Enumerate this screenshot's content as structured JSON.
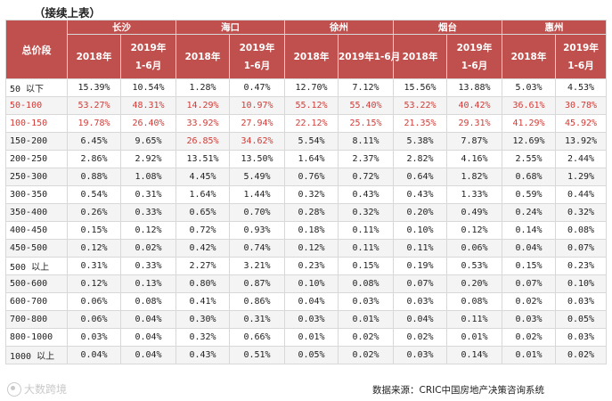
{
  "caption": "（接续上表）",
  "table": {
    "range_header": "总价段",
    "cities": [
      "长沙",
      "海口",
      "徐州",
      "烟台",
      "惠州"
    ],
    "period_a": "2018年",
    "period_b_line1": "2019年",
    "period_b_line2": "1-6月",
    "xuzhou_period_b": "2019年1-6月",
    "rows": [
      {
        "range": "50 以下",
        "v": [
          "15.39%",
          "10.54%",
          "1.28%",
          "0.47%",
          "12.70%",
          "7.12%",
          "15.56%",
          "13.88%",
          "5.03%",
          "4.53%"
        ]
      },
      {
        "range": "50-100",
        "v": [
          "53.27%",
          "48.31%",
          "14.29%",
          "10.97%",
          "55.12%",
          "55.40%",
          "53.22%",
          "40.42%",
          "36.61%",
          "30.78%"
        ]
      },
      {
        "range": "100-150",
        "v": [
          "19.78%",
          "26.40%",
          "33.92%",
          "27.94%",
          "22.12%",
          "25.15%",
          "21.35%",
          "29.31%",
          "41.29%",
          "45.92%"
        ]
      },
      {
        "range": "150-200",
        "v": [
          "6.45%",
          "9.65%",
          "26.85%",
          "34.62%",
          "5.54%",
          "8.11%",
          "5.38%",
          "7.87%",
          "12.69%",
          "13.92%"
        ]
      },
      {
        "range": "200-250",
        "v": [
          "2.86%",
          "2.92%",
          "13.51%",
          "13.50%",
          "1.64%",
          "2.37%",
          "2.82%",
          "4.16%",
          "2.55%",
          "2.44%"
        ]
      },
      {
        "range": "250-300",
        "v": [
          "0.88%",
          "1.08%",
          "4.45%",
          "5.49%",
          "0.76%",
          "0.72%",
          "0.64%",
          "1.82%",
          "0.68%",
          "1.29%"
        ]
      },
      {
        "range": "300-350",
        "v": [
          "0.54%",
          "0.31%",
          "1.64%",
          "1.44%",
          "0.32%",
          "0.43%",
          "0.43%",
          "1.33%",
          "0.59%",
          "0.44%"
        ]
      },
      {
        "range": "350-400",
        "v": [
          "0.26%",
          "0.33%",
          "0.65%",
          "0.70%",
          "0.28%",
          "0.32%",
          "0.20%",
          "0.49%",
          "0.24%",
          "0.32%"
        ]
      },
      {
        "range": "400-450",
        "v": [
          "0.15%",
          "0.12%",
          "0.72%",
          "0.93%",
          "0.18%",
          "0.11%",
          "0.10%",
          "0.12%",
          "0.14%",
          "0.08%"
        ]
      },
      {
        "range": "450-500",
        "v": [
          "0.12%",
          "0.02%",
          "0.42%",
          "0.74%",
          "0.12%",
          "0.11%",
          "0.11%",
          "0.06%",
          "0.04%",
          "0.07%"
        ]
      },
      {
        "range": "500 以上",
        "v": [
          "0.31%",
          "0.33%",
          "2.27%",
          "3.21%",
          "0.23%",
          "0.15%",
          "0.19%",
          "0.53%",
          "0.15%",
          "0.23%"
        ]
      },
      {
        "range": "500-600",
        "v": [
          "0.12%",
          "0.13%",
          "0.80%",
          "0.87%",
          "0.10%",
          "0.08%",
          "0.07%",
          "0.20%",
          "0.07%",
          "0.10%"
        ]
      },
      {
        "range": "600-700",
        "v": [
          "0.06%",
          "0.08%",
          "0.41%",
          "0.86%",
          "0.04%",
          "0.03%",
          "0.03%",
          "0.08%",
          "0.02%",
          "0.03%"
        ]
      },
      {
        "range": "700-800",
        "v": [
          "0.06%",
          "0.04%",
          "0.30%",
          "0.31%",
          "0.03%",
          "0.01%",
          "0.04%",
          "0.11%",
          "0.03%",
          "0.05%"
        ]
      },
      {
        "range": "800-1000",
        "v": [
          "0.03%",
          "0.04%",
          "0.32%",
          "0.66%",
          "0.01%",
          "0.02%",
          "0.02%",
          "0.01%",
          "0.02%",
          "0.03%"
        ]
      },
      {
        "range": "1000 以上",
        "v": [
          "0.04%",
          "0.04%",
          "0.43%",
          "0.51%",
          "0.05%",
          "0.02%",
          "0.03%",
          "0.14%",
          "0.01%",
          "0.02%"
        ]
      }
    ]
  },
  "footer": {
    "source": "数据来源：CRIC中国房地产决策咨询系统",
    "watermark": "大数跨境"
  },
  "colors": {
    "header_bg": "#c0504d",
    "highlight_text": "#d23b36"
  }
}
